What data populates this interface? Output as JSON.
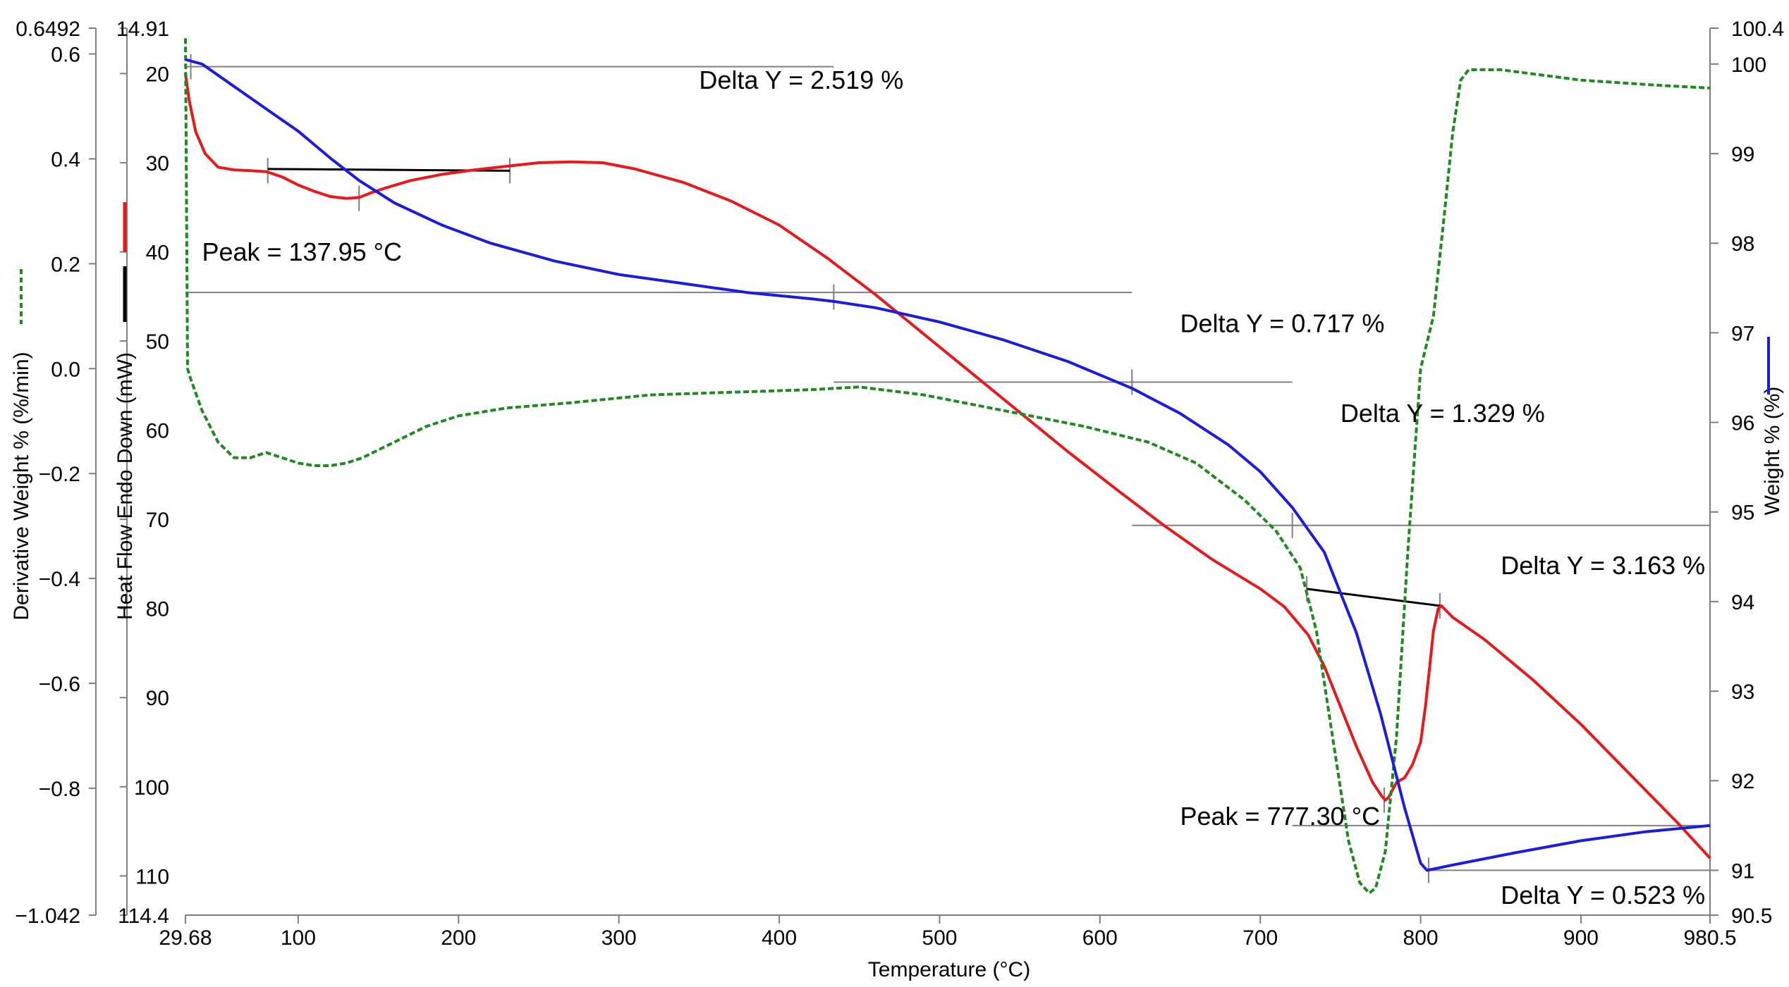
{
  "chart_data": {
    "type": "line",
    "xlabel": "Temperature (°C)",
    "xlim": [
      29.68,
      980.5
    ],
    "x_ticks": [
      "29.68",
      "100",
      "200",
      "300",
      "400",
      "500",
      "600",
      "700",
      "800",
      "900",
      "980.5"
    ],
    "axes": {
      "heat_flow": {
        "label": "Heat Flow Endo Down (mW)",
        "ylim": [
          14.91,
          114.4
        ],
        "inverted": true,
        "ticks": [
          "14.91",
          "20",
          "30",
          "40",
          "50",
          "60",
          "70",
          "80",
          "90",
          "100",
          "110",
          "114.4"
        ]
      },
      "derivative": {
        "label": "Derivative Weight % (%/min)",
        "ylim": [
          -1.042,
          0.6492
        ],
        "ticks": [
          "0.6492",
          "0.6",
          "0.4",
          "0.2",
          "0.0",
          "−0.2",
          "−0.4",
          "−0.6",
          "−0.8",
          "−1.042"
        ]
      },
      "weight": {
        "label": "Weight % (%)",
        "ylim": [
          90.5,
          100.4
        ],
        "ticks": [
          "100.4",
          "100",
          "99",
          "98",
          "97",
          "96",
          "95",
          "94",
          "93",
          "92",
          "91",
          "90.5"
        ]
      }
    },
    "series": [
      {
        "axis": "heat_flow",
        "color": "#e8191b",
        "style": "solid",
        "x": [
          29.7,
          32,
          36,
          42,
          50,
          60,
          70,
          80,
          90,
          100,
          110,
          120,
          130,
          138,
          145,
          155,
          170,
          190,
          210,
          230,
          250,
          270,
          290,
          310,
          340,
          370,
          400,
          430,
          460,
          490,
          520,
          550,
          580,
          610,
          640,
          670,
          700,
          715,
          730,
          740,
          750,
          760,
          770,
          776,
          778,
          780,
          785,
          790,
          795,
          800,
          803,
          806,
          808,
          811,
          813,
          820,
          840,
          870,
          900,
          930,
          960,
          980.5
        ],
        "y": [
          20,
          23,
          26.5,
          29,
          30.5,
          30.8,
          30.9,
          31,
          31.6,
          32.5,
          33.2,
          33.8,
          34,
          33.9,
          33.4,
          32.8,
          32,
          31.3,
          30.8,
          30.4,
          30,
          29.9,
          30,
          30.7,
          32.2,
          34.3,
          37,
          40.7,
          44.8,
          49.2,
          53.6,
          58,
          62.4,
          66.6,
          70.7,
          74.5,
          77.8,
          79.8,
          83,
          86.5,
          91,
          95.5,
          99.5,
          101.1,
          101.5,
          101.2,
          99.5,
          99,
          97.5,
          95,
          91,
          86,
          82.5,
          80,
          79.7,
          81,
          83.5,
          88,
          93,
          98.5,
          104,
          108
        ]
      },
      {
        "axis": "derivative",
        "color": "#1f8a1f",
        "style": "dashed",
        "x": [
          29.7,
          31,
          33,
          40,
          50,
          60,
          70,
          80,
          90,
          100,
          110,
          120,
          130,
          140,
          160,
          180,
          200,
          230,
          270,
          320,
          370,
          420,
          450,
          490,
          540,
          590,
          630,
          660,
          690,
          710,
          725,
          735,
          745,
          755,
          762,
          768,
          772,
          778,
          785,
          792,
          800,
          808,
          815,
          820,
          825,
          830,
          850,
          900,
          950,
          980.5
        ],
        "y": [
          0.63,
          0.0,
          -0.02,
          -0.08,
          -0.14,
          -0.17,
          -0.17,
          -0.16,
          -0.17,
          -0.18,
          -0.185,
          -0.185,
          -0.18,
          -0.17,
          -0.14,
          -0.11,
          -0.09,
          -0.075,
          -0.065,
          -0.05,
          -0.045,
          -0.04,
          -0.035,
          -0.05,
          -0.08,
          -0.11,
          -0.14,
          -0.18,
          -0.25,
          -0.31,
          -0.38,
          -0.5,
          -0.7,
          -0.9,
          -0.98,
          -1.0,
          -0.99,
          -0.92,
          -0.7,
          -0.35,
          0.0,
          0.1,
          0.3,
          0.45,
          0.55,
          0.57,
          0.57,
          0.55,
          0.54,
          0.535
        ]
      },
      {
        "axis": "weight",
        "color": "#1c1cde",
        "style": "solid",
        "x": [
          29.7,
          40,
          60,
          80,
          100,
          120,
          138,
          160,
          190,
          220,
          260,
          300,
          340,
          380,
          420,
          434,
          460,
          500,
          540,
          580,
          620,
          650,
          680,
          700,
          720,
          740,
          760,
          775,
          790,
          800,
          804,
          820,
          860,
          900,
          940,
          980.5
        ],
        "y": [
          100.05,
          100.0,
          99.75,
          99.5,
          99.25,
          98.95,
          98.7,
          98.45,
          98.2,
          98.0,
          97.8,
          97.65,
          97.55,
          97.45,
          97.38,
          97.35,
          97.28,
          97.12,
          96.92,
          96.68,
          96.38,
          96.1,
          95.75,
          95.45,
          95.05,
          94.55,
          93.65,
          92.75,
          91.7,
          91.08,
          91.0,
          91.06,
          91.2,
          91.33,
          91.43,
          91.5
        ]
      }
    ],
    "annotations": [
      {
        "text": "Delta Y = 2.519 %",
        "x": 350,
        "axis": "weight",
        "y": 99.82
      },
      {
        "text": "Peak = 137.95 °C",
        "x": 40,
        "axis": "weight",
        "y": 97.9
      },
      {
        "text": "Delta Y = 0.717 %",
        "x": 650,
        "axis": "weight",
        "y": 97.1
      },
      {
        "text": "Delta Y = 1.329 %",
        "x": 750,
        "axis": "weight",
        "y": 96.1
      },
      {
        "text": "Delta Y = 3.163 %",
        "x": 850,
        "axis": "weight",
        "y": 94.4
      },
      {
        "text": "Peak = 777.30 °C",
        "x": 650,
        "axis": "weight",
        "y": 91.6
      },
      {
        "text": "Delta Y = 0.523 %",
        "x": 850,
        "axis": "weight",
        "y": 90.72
      }
    ]
  }
}
